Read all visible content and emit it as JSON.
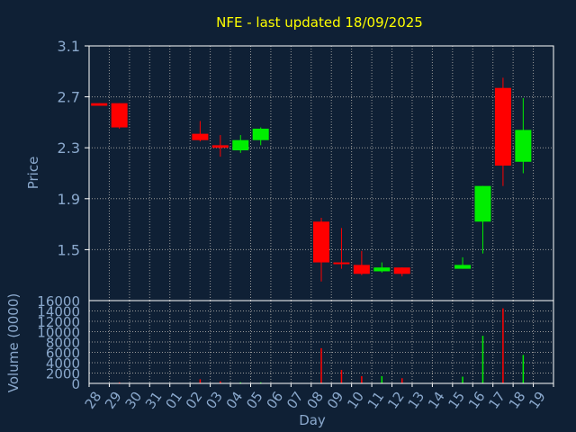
{
  "page": {
    "background": "#0f2035",
    "title_color": "#ffff00",
    "axis_text_color": "#8aa8cc",
    "frame_color": "#ffffff",
    "grid_color": "#9a9a9a"
  },
  "chart_data": {
    "title": "NFE - last updated 18/09/2025",
    "type": "candlestick",
    "grid": true,
    "up_color": "#00ee00",
    "down_color": "#ff0000",
    "days": [
      "28",
      "29",
      "30",
      "31",
      "01",
      "02",
      "03",
      "04",
      "05",
      "06",
      "07",
      "08",
      "09",
      "10",
      "11",
      "12",
      "13",
      "14",
      "15",
      "16",
      "17",
      "18",
      "19"
    ],
    "xlabel": "Day",
    "price": {
      "ylabel": "Price",
      "ylim": [
        1.1,
        3.1
      ],
      "yticks": [
        "3.1",
        "2.7",
        "2.3",
        "1.9",
        "1.5"
      ],
      "ytick_values": [
        3.1,
        2.7,
        2.3,
        1.9,
        1.5
      ],
      "candles": [
        {
          "day": "28",
          "open": 2.65,
          "high": 2.65,
          "low": 2.63,
          "close": 2.63
        },
        {
          "day": "29",
          "open": 2.65,
          "high": 2.65,
          "low": 2.45,
          "close": 2.46
        },
        {
          "day": "02",
          "open": 2.41,
          "high": 2.51,
          "low": 2.35,
          "close": 2.36
        },
        {
          "day": "03",
          "open": 2.32,
          "high": 2.4,
          "low": 2.23,
          "close": 2.3
        },
        {
          "day": "04",
          "open": 2.28,
          "high": 2.4,
          "low": 2.26,
          "close": 2.36
        },
        {
          "day": "05",
          "open": 2.36,
          "high": 2.46,
          "low": 2.32,
          "close": 2.45
        },
        {
          "day": "08",
          "open": 1.72,
          "high": 1.75,
          "low": 1.25,
          "close": 1.4
        },
        {
          "day": "09",
          "open": 1.4,
          "high": 1.67,
          "low": 1.35,
          "close": 1.39
        },
        {
          "day": "10",
          "open": 1.38,
          "high": 1.49,
          "low": 1.3,
          "close": 1.31
        },
        {
          "day": "11",
          "open": 1.33,
          "high": 1.4,
          "low": 1.32,
          "close": 1.36
        },
        {
          "day": "12",
          "open": 1.36,
          "high": 1.36,
          "low": 1.29,
          "close": 1.31
        },
        {
          "day": "15",
          "open": 1.35,
          "high": 1.44,
          "low": 1.35,
          "close": 1.38
        },
        {
          "day": "16",
          "open": 1.72,
          "high": 2.0,
          "low": 1.47,
          "close": 2.0
        },
        {
          "day": "17",
          "open": 2.77,
          "high": 2.85,
          "low": 2.0,
          "close": 2.16
        },
        {
          "day": "18",
          "open": 2.19,
          "high": 2.69,
          "low": 2.1,
          "close": 2.44
        }
      ]
    },
    "volume": {
      "ylabel": "Volume (0000)",
      "ylim": [
        0,
        16000
      ],
      "yticks": [
        "16000",
        "14000",
        "12000",
        "10000",
        "8000",
        "6000",
        "4000",
        "2000",
        "0"
      ],
      "ytick_values": [
        16000,
        14000,
        12000,
        10000,
        8000,
        6000,
        4000,
        2000,
        0
      ],
      "bars": [
        {
          "day": "29",
          "value": 200,
          "color": "#ff0000"
        },
        {
          "day": "02",
          "value": 800,
          "color": "#ff0000"
        },
        {
          "day": "03",
          "value": 400,
          "color": "#ff0000"
        },
        {
          "day": "04",
          "value": 200,
          "color": "#00ee00"
        },
        {
          "day": "05",
          "value": 200,
          "color": "#00ee00"
        },
        {
          "day": "08",
          "value": 6800,
          "color": "#ff0000"
        },
        {
          "day": "09",
          "value": 2600,
          "color": "#ff0000"
        },
        {
          "day": "10",
          "value": 1400,
          "color": "#ff0000"
        },
        {
          "day": "11",
          "value": 1400,
          "color": "#00ee00"
        },
        {
          "day": "12",
          "value": 1000,
          "color": "#ff0000"
        },
        {
          "day": "15",
          "value": 1300,
          "color": "#00ee00"
        },
        {
          "day": "16",
          "value": 9200,
          "color": "#00ee00"
        },
        {
          "day": "17",
          "value": 14500,
          "color": "#ff0000"
        },
        {
          "day": "18",
          "value": 5500,
          "color": "#00ee00"
        }
      ]
    }
  }
}
